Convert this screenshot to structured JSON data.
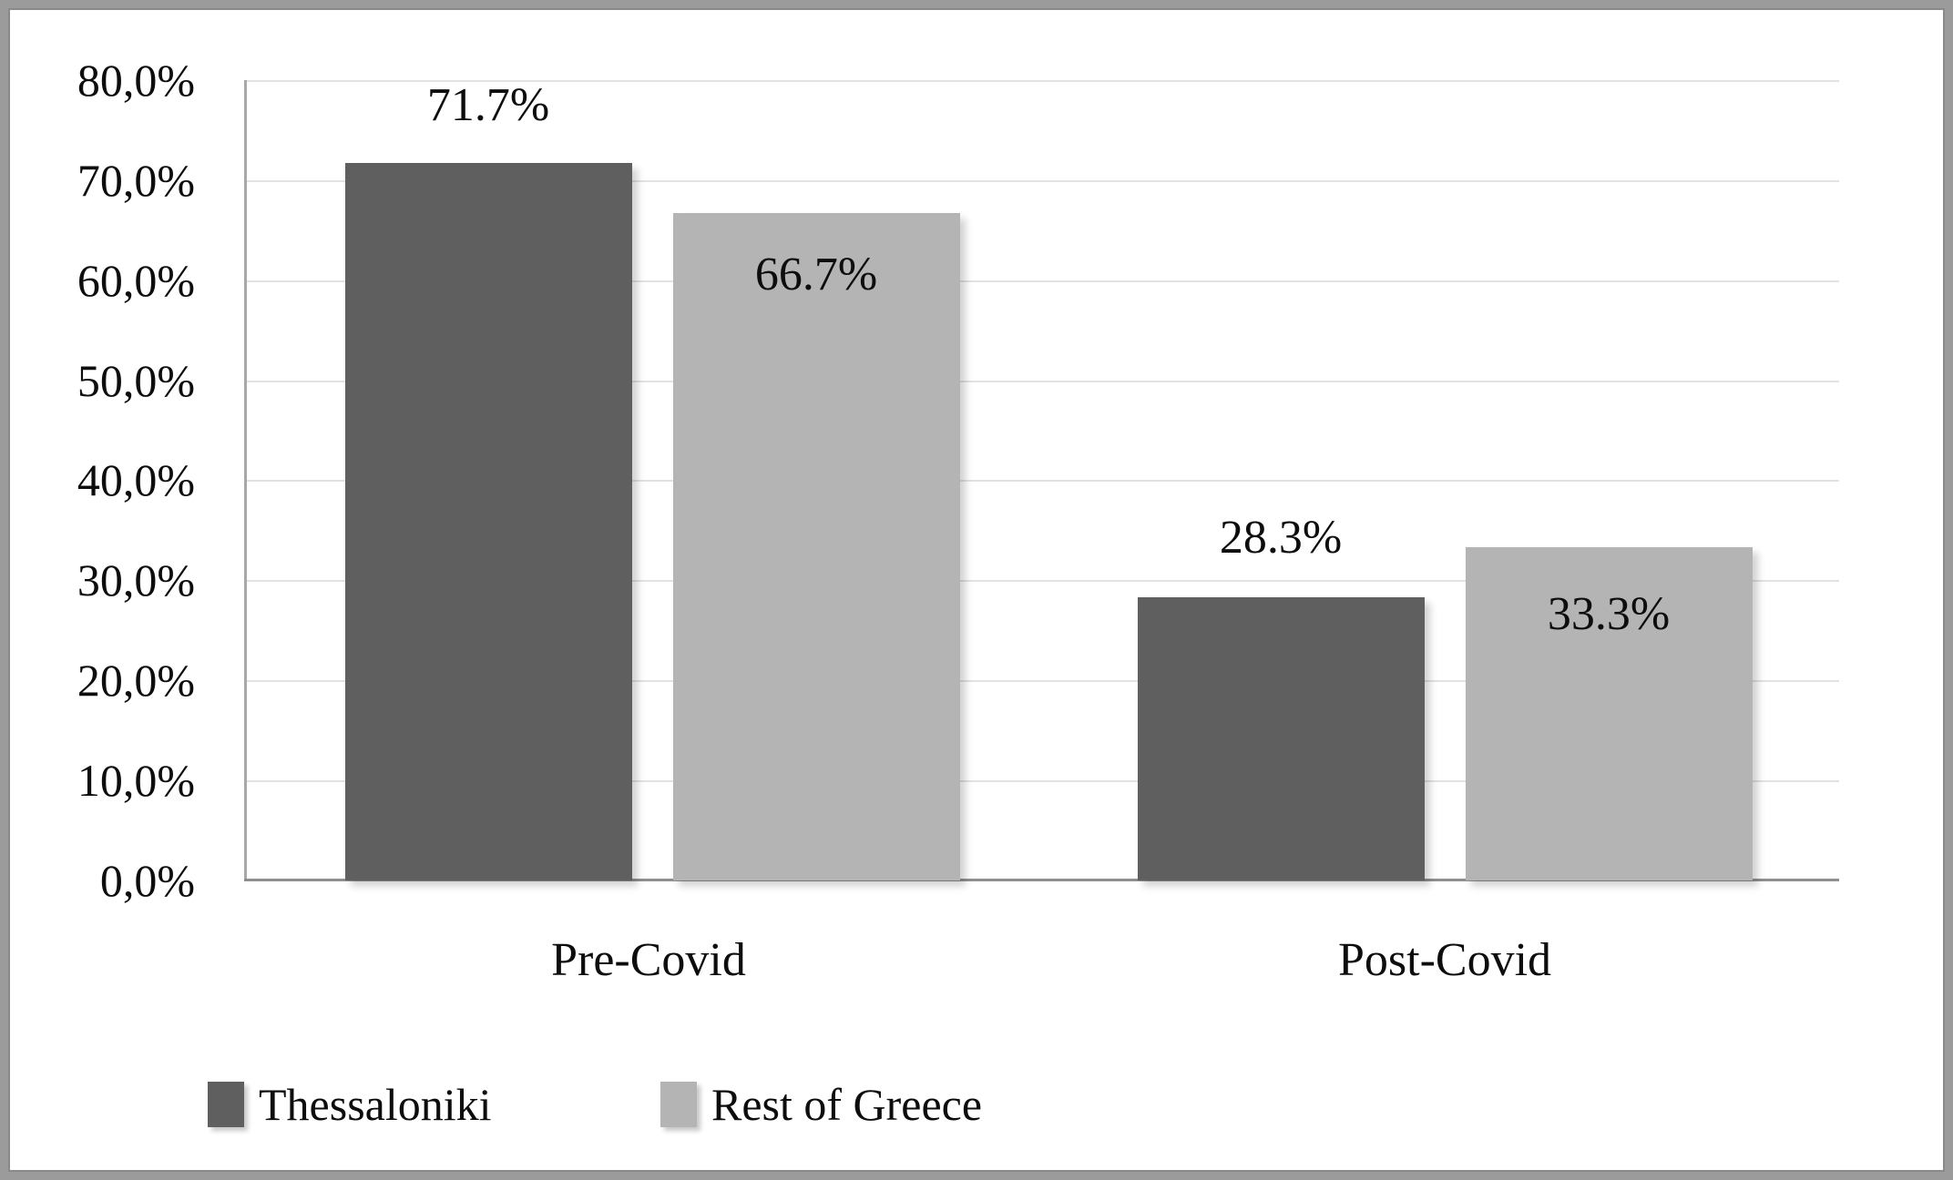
{
  "chart_data": {
    "type": "bar",
    "categories": [
      "Pre-Covid",
      "Post-Covid"
    ],
    "series": [
      {
        "name": "Thessaloniki",
        "color": "#5f5f5f",
        "values": [
          71.7,
          28.3
        ],
        "data_labels": [
          "71.7%",
          "28.3%"
        ]
      },
      {
        "name": "Rest of Greece",
        "color": "#b4b4b4",
        "values": [
          66.7,
          33.3
        ],
        "data_labels": [
          "66.7%",
          "33.3%"
        ]
      }
    ],
    "y_axis": {
      "min": 0,
      "max": 80,
      "step": 10,
      "ticks": [
        "80,0%",
        "70,0%",
        "60,0%",
        "50,0%",
        "40,0%",
        "30,0%",
        "20,0%",
        "10,0%",
        "0,0%"
      ]
    },
    "xlabel": "",
    "ylabel": "",
    "title": "",
    "grid": true,
    "legend_position": "bottom",
    "frame_color": "#9b9b9b",
    "gridline_color": "#e2e2e2",
    "axis_line_color": "#a8a8a8"
  }
}
